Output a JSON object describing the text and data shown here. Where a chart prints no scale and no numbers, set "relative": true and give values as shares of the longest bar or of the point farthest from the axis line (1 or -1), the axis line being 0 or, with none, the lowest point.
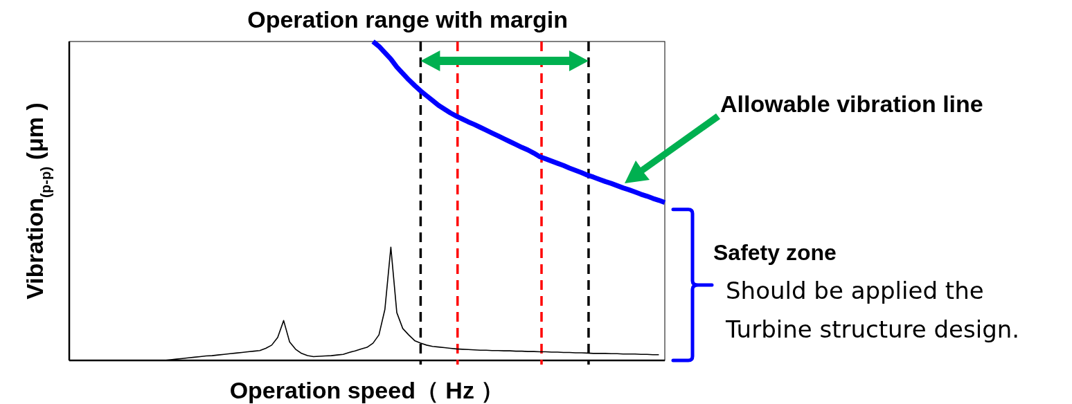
{
  "chart_data": {
    "type": "line",
    "relative": true,
    "xlabel": "Operation speed（ Hz ）",
    "ylabel": "Vibration$_{(p-p)}$ (μm )",
    "line_style": "solid",
    "categories": [
      null,
      null,
      null,
      null,
      null,
      null,
      null,
      null,
      null,
      null,
      null,
      null,
      null,
      null,
      null,
      null,
      null,
      null,
      null,
      null,
      null,
      null,
      null,
      null,
      null,
      null,
      null,
      null,
      null,
      null,
      null,
      null,
      null,
      null,
      null,
      null,
      null,
      null,
      null,
      null,
      null,
      null,
      null,
      null,
      null,
      null,
      null,
      null,
      null,
      null,
      null,
      null,
      null,
      null,
      null,
      null,
      null,
      null,
      null,
      null,
      null,
      null,
      null,
      null,
      null,
      null,
      null,
      null,
      null,
      null,
      null,
      null,
      null,
      null,
      null,
      null,
      null,
      null,
      null,
      null,
      null,
      null,
      null,
      null,
      null,
      null,
      null,
      null,
      null,
      null,
      null,
      null,
      null,
      null,
      null,
      null,
      null,
      null,
      null,
      null,
      null
    ],
    "series": [
      {
        "name": "Allowable vibration line",
        "color": "#0000ff",
        "values": [
          null,
          null,
          null,
          null,
          null,
          null,
          null,
          null,
          null,
          null,
          null,
          null,
          null,
          null,
          null,
          null,
          null,
          null,
          null,
          null,
          null,
          null,
          null,
          null,
          null,
          null,
          null,
          null,
          null,
          null,
          null,
          null,
          null,
          null,
          null,
          null,
          null,
          null,
          null,
          null,
          null,
          null,
          null,
          null,
          null,
          null,
          null,
          null,
          null,
          null,
          null,
          1.0,
          0.985,
          0.965,
          0.945,
          0.92,
          0.9,
          0.88,
          0.862,
          0.845,
          0.83,
          0.815,
          0.8,
          0.788,
          0.776,
          0.766,
          0.757,
          0.748,
          0.74,
          0.731,
          0.722,
          0.713,
          0.704,
          0.695,
          0.686,
          0.677,
          0.668,
          0.66,
          0.65,
          0.639,
          0.632,
          0.625,
          0.618,
          0.611,
          0.603,
          0.596,
          0.589,
          0.581,
          0.575,
          0.568,
          0.561,
          0.555,
          0.548,
          0.541,
          0.535,
          0.528,
          0.521,
          0.515,
          0.508,
          0.502,
          0.495
        ]
      },
      {
        "color": "#000000",
        "values": [
          null,
          null,
          null,
          null,
          null,
          null,
          null,
          null,
          null,
          null,
          null,
          null,
          null,
          null,
          null,
          null,
          0,
          0.002,
          0.004,
          0.006,
          0.008,
          0.01,
          0.012,
          0.014,
          0.015,
          0.017,
          0.019,
          0.021,
          0.023,
          0.025,
          0.027,
          0.029,
          0.031,
          0.038,
          0.048,
          0.072,
          0.125,
          0.058,
          0.035,
          0.022,
          0.015,
          0.012,
          0.013,
          0.014,
          0.015,
          0.017,
          0.019,
          0.025,
          0.03,
          0.036,
          0.041,
          0.054,
          0.08,
          0.16,
          0.355,
          0.15,
          0.1,
          0.08,
          0.062,
          0.054,
          0.048,
          0.044,
          0.042,
          0.04,
          0.038,
          0.036,
          0.035,
          0.034,
          0.033,
          0.032,
          0.032,
          0.031,
          0.031,
          0.03,
          0.03,
          0.029,
          0.029,
          0.028,
          0.028,
          0.027,
          0.027,
          0.026,
          0.026,
          0.025,
          0.025,
          0.024,
          0.024,
          0.023,
          0.022,
          0.022,
          0.022,
          0.021,
          0.021,
          0.02,
          0.02,
          0.02,
          0.019,
          0.019,
          0.018,
          0.018,
          null
        ]
      }
    ],
    "annotations": [
      "Operation range with margin",
      "Safety zone",
      "Should be applied the\nTurbine structure design."
    ]
  }
}
